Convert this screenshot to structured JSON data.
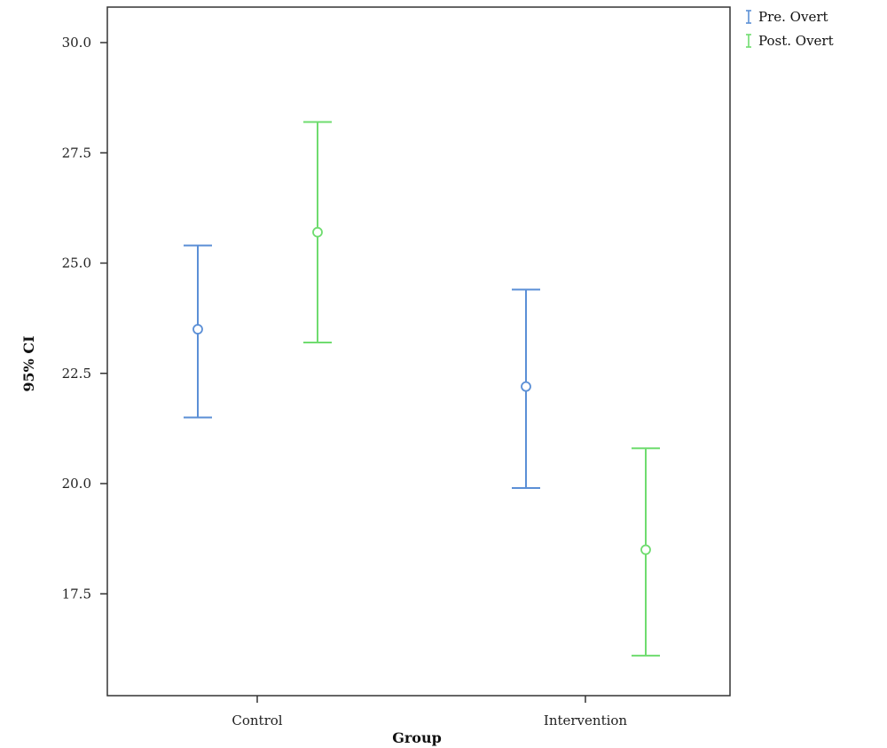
{
  "chart_data": {
    "type": "errorbar",
    "title": "",
    "xlabel": "Group",
    "ylabel": "95% CI",
    "categories": [
      "Control",
      "Intervention"
    ],
    "ylim": [
      15.5,
      31.0
    ],
    "yticks": [
      "30.0",
      "27.5",
      "25.0",
      "22.5",
      "20.0",
      "17.5"
    ],
    "grid": false,
    "legend_position": "top-right",
    "series": [
      {
        "name": "Pre. Overt",
        "color": "#5b8fd6",
        "points": [
          {
            "category": "Control",
            "mean": 23.5,
            "lower": 21.5,
            "upper": 25.4
          },
          {
            "category": "Intervention",
            "mean": 22.2,
            "lower": 19.9,
            "upper": 24.4
          }
        ]
      },
      {
        "name": "Post. Overt",
        "color": "#6fdc6f",
        "points": [
          {
            "category": "Control",
            "mean": 25.7,
            "lower": 23.2,
            "upper": 28.2
          },
          {
            "category": "Intervention",
            "mean": 18.5,
            "lower": 16.1,
            "upper": 20.8
          }
        ]
      }
    ]
  }
}
